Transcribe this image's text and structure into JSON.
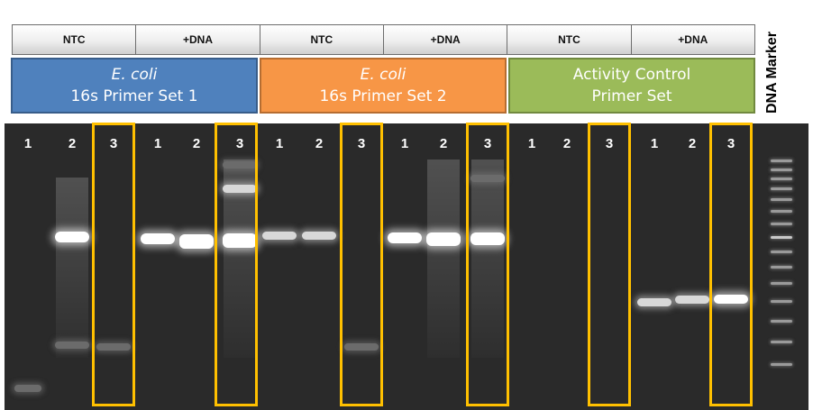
{
  "conditions": [
    "NTC",
    "+DNA",
    "NTC",
    "+DNA",
    "NTC",
    "+DNA"
  ],
  "primer_sets": [
    {
      "line1": "E. coli",
      "line2": "16s Primer Set 1",
      "color": "#4f81bd"
    },
    {
      "line1": "E. coli",
      "line2": "16s Primer Set 2",
      "color": "#f79646"
    },
    {
      "line1": "Activity Control",
      "line2": "Primer Set",
      "color": "#9bbb59"
    }
  ],
  "marker_label": "DNA Marker",
  "lane_labels": [
    "1",
    "2",
    "3",
    "1",
    "2",
    "3",
    "1",
    "2",
    "3",
    "1",
    "2",
    "3",
    "1",
    "2",
    "3",
    "1",
    "2",
    "3"
  ],
  "highlight_color": "#ffc000"
}
